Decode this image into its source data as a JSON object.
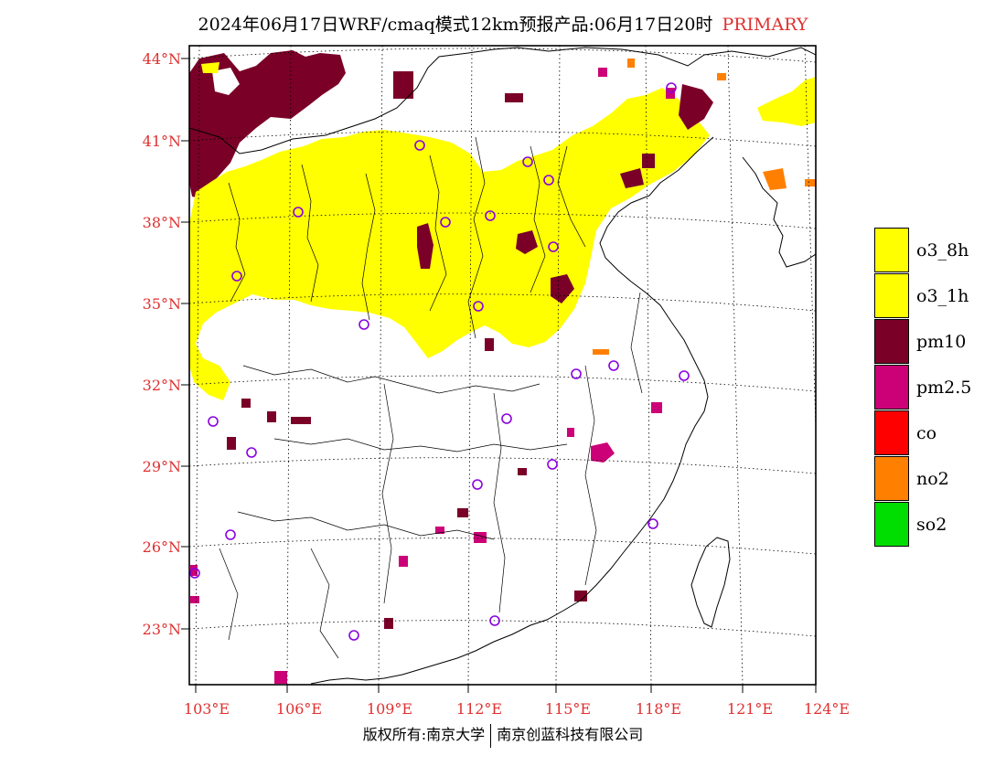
{
  "header": {
    "title": "2024年06月17日WRF/cmaq模式12km预报产品:06月17日20时",
    "tag": "PRIMARY"
  },
  "axes": {
    "lat_labels": [
      "44°N",
      "41°N",
      "38°N",
      "35°N",
      "32°N",
      "29°N",
      "26°N",
      "23°N"
    ],
    "lon_labels": [
      "103°E",
      "106°E",
      "109°E",
      "112°E",
      "115°E",
      "118°E",
      "121°E",
      "124°E"
    ]
  },
  "legend": {
    "items": [
      {
        "label": "o3_8h",
        "color": "#ffff00"
      },
      {
        "label": "o3_1h",
        "color": "#ffff00"
      },
      {
        "label": "pm10",
        "color": "#7a0028"
      },
      {
        "label": "pm2.5",
        "color": "#cc0077"
      },
      {
        "label": "co",
        "color": "#ff0000"
      },
      {
        "label": "no2",
        "color": "#ff8000"
      },
      {
        "label": "so2",
        "color": "#00dd00"
      }
    ]
  },
  "footer": {
    "left": "版权所有:南京大学",
    "right": "南京创蓝科技有限公司"
  }
}
